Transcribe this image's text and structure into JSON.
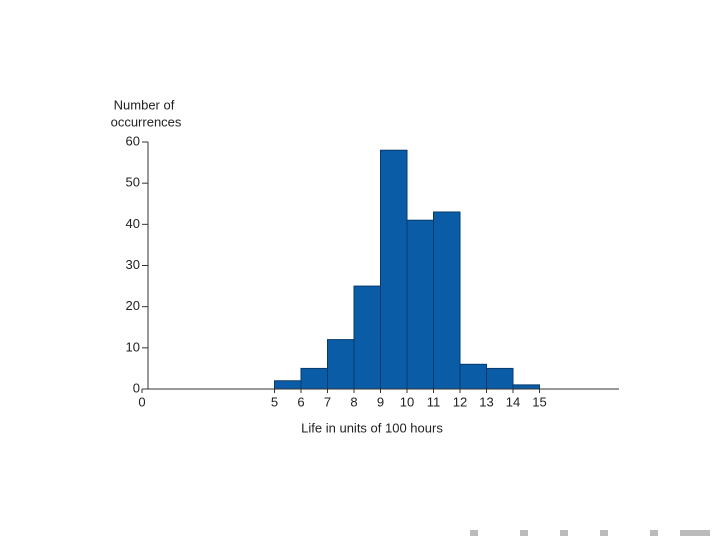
{
  "chart_data": {
    "type": "histogram",
    "ylabel": [
      "Number of",
      "occurrences"
    ],
    "xlabel": "Life in units of 100 hours",
    "bins": [
      5,
      6,
      7,
      8,
      9,
      10,
      11,
      12,
      13,
      14,
      15
    ],
    "counts": [
      2,
      5,
      12,
      25,
      58,
      41,
      43,
      6,
      5,
      1
    ],
    "color": "#0b5ca6",
    "xlim": [
      0,
      18
    ],
    "xticks": [
      0,
      5,
      6,
      7,
      8,
      9,
      10,
      11,
      12,
      13,
      14,
      15
    ],
    "ylim": [
      0,
      60
    ],
    "yticks": [
      0,
      10,
      20,
      30,
      40,
      50,
      60
    ]
  }
}
